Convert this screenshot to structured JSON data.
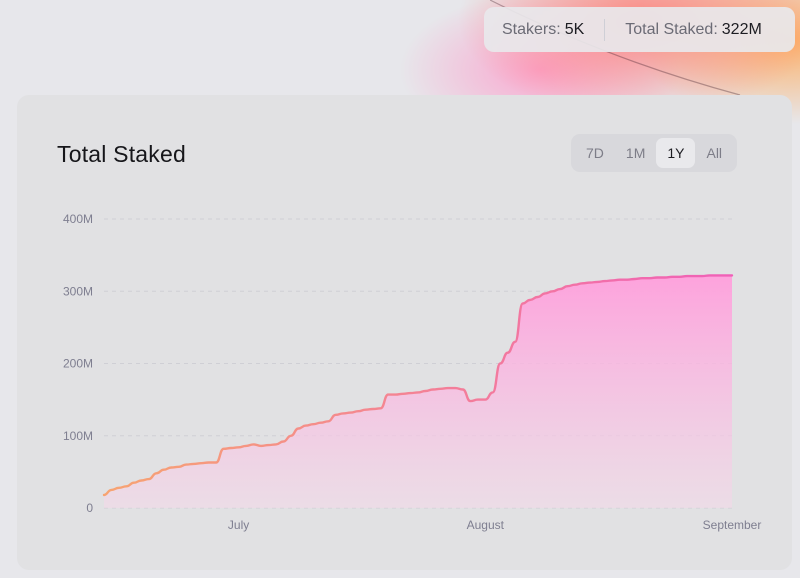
{
  "stats": {
    "stakers_label": "Stakers:",
    "stakers_value": "5K",
    "total_staked_label": "Total Staked:",
    "total_staked_value": "322M"
  },
  "card": {
    "title": "Total Staked"
  },
  "range_tabs": [
    {
      "label": "7D",
      "active": false
    },
    {
      "label": "1M",
      "active": false
    },
    {
      "label": "1Y",
      "active": true
    },
    {
      "label": "All",
      "active": false
    }
  ],
  "colors": {
    "line_start": "#f7a472",
    "line_end": "#f060b8",
    "area_top": "#ff9fdc",
    "area_bottom": "#f3d9e8",
    "grid": "#cfcfd5"
  },
  "chart_data": {
    "type": "area",
    "title": "Total Staked",
    "xlabel": "",
    "ylabel": "",
    "ylim": [
      0,
      400
    ],
    "y_unit": "M",
    "y_ticks": [
      "0",
      "100M",
      "200M",
      "300M",
      "400M"
    ],
    "x_tick_labels": [
      "July",
      "August",
      "September"
    ],
    "x_tick_positions": [
      18,
      51,
      84
    ],
    "x_range": [
      0,
      84
    ],
    "grid": true,
    "series": [
      {
        "points": [
          [
            0,
            18
          ],
          [
            1,
            25
          ],
          [
            2,
            28
          ],
          [
            3,
            30
          ],
          [
            4,
            35
          ],
          [
            5,
            38
          ],
          [
            6,
            40
          ],
          [
            7,
            48
          ],
          [
            8,
            53
          ],
          [
            9,
            56
          ],
          [
            10,
            57
          ],
          [
            11,
            60
          ],
          [
            12,
            61
          ],
          [
            13,
            62
          ],
          [
            14,
            63
          ],
          [
            15,
            63
          ],
          [
            16,
            82
          ],
          [
            17,
            83
          ],
          [
            18,
            84
          ],
          [
            19,
            86
          ],
          [
            20,
            88
          ],
          [
            21,
            86
          ],
          [
            22,
            87
          ],
          [
            23,
            88
          ],
          [
            24,
            92
          ],
          [
            25,
            100
          ],
          [
            26,
            110
          ],
          [
            27,
            114
          ],
          [
            28,
            116
          ],
          [
            29,
            118
          ],
          [
            30,
            120
          ],
          [
            31,
            129
          ],
          [
            32,
            131
          ],
          [
            33,
            132
          ],
          [
            34,
            134
          ],
          [
            35,
            136
          ],
          [
            36,
            137
          ],
          [
            37,
            138
          ],
          [
            38,
            157
          ],
          [
            39,
            157
          ],
          [
            40,
            158
          ],
          [
            41,
            159
          ],
          [
            42,
            160
          ],
          [
            43,
            162
          ],
          [
            44,
            164
          ],
          [
            45,
            165
          ],
          [
            46,
            166
          ],
          [
            47,
            166
          ],
          [
            48,
            164
          ],
          [
            49,
            148
          ],
          [
            50,
            150
          ],
          [
            51,
            150
          ],
          [
            52,
            160
          ],
          [
            53,
            200
          ],
          [
            54,
            215
          ],
          [
            55,
            230
          ],
          [
            56,
            283
          ],
          [
            57,
            288
          ],
          [
            58,
            292
          ],
          [
            59,
            297
          ],
          [
            60,
            300
          ],
          [
            61,
            303
          ],
          [
            62,
            307
          ],
          [
            63,
            309
          ],
          [
            64,
            311
          ],
          [
            65,
            312
          ],
          [
            66,
            313
          ],
          [
            67,
            314
          ],
          [
            68,
            315
          ],
          [
            69,
            316
          ],
          [
            70,
            316
          ],
          [
            71,
            317
          ],
          [
            72,
            318
          ],
          [
            73,
            318
          ],
          [
            74,
            319
          ],
          [
            75,
            319
          ],
          [
            76,
            320
          ],
          [
            77,
            320
          ],
          [
            78,
            321
          ],
          [
            79,
            321
          ],
          [
            80,
            321
          ],
          [
            81,
            322
          ],
          [
            82,
            322
          ],
          [
            83,
            322
          ],
          [
            84,
            322
          ]
        ]
      }
    ]
  }
}
